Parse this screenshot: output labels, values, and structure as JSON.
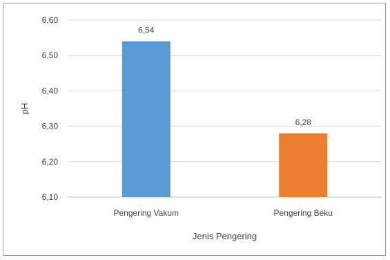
{
  "chart_data": {
    "type": "bar",
    "title": "",
    "xlabel": "Jenis Pengering",
    "ylabel": "pH",
    "categories": [
      "Pengering Vakum",
      "Pengering Beku"
    ],
    "values": [
      6.54,
      6.28
    ],
    "value_labels": [
      "6,54",
      "6,28"
    ],
    "colors": [
      "#5b9bd5",
      "#ed7d31"
    ],
    "ylim": [
      6.1,
      6.6
    ],
    "yticks": [
      6.1,
      6.2,
      6.3,
      6.4,
      6.5,
      6.6
    ],
    "ytick_labels": [
      "6,10",
      "6,20",
      "6,30",
      "6,40",
      "6,50",
      "6,60"
    ],
    "grid": true,
    "legend": "none"
  }
}
